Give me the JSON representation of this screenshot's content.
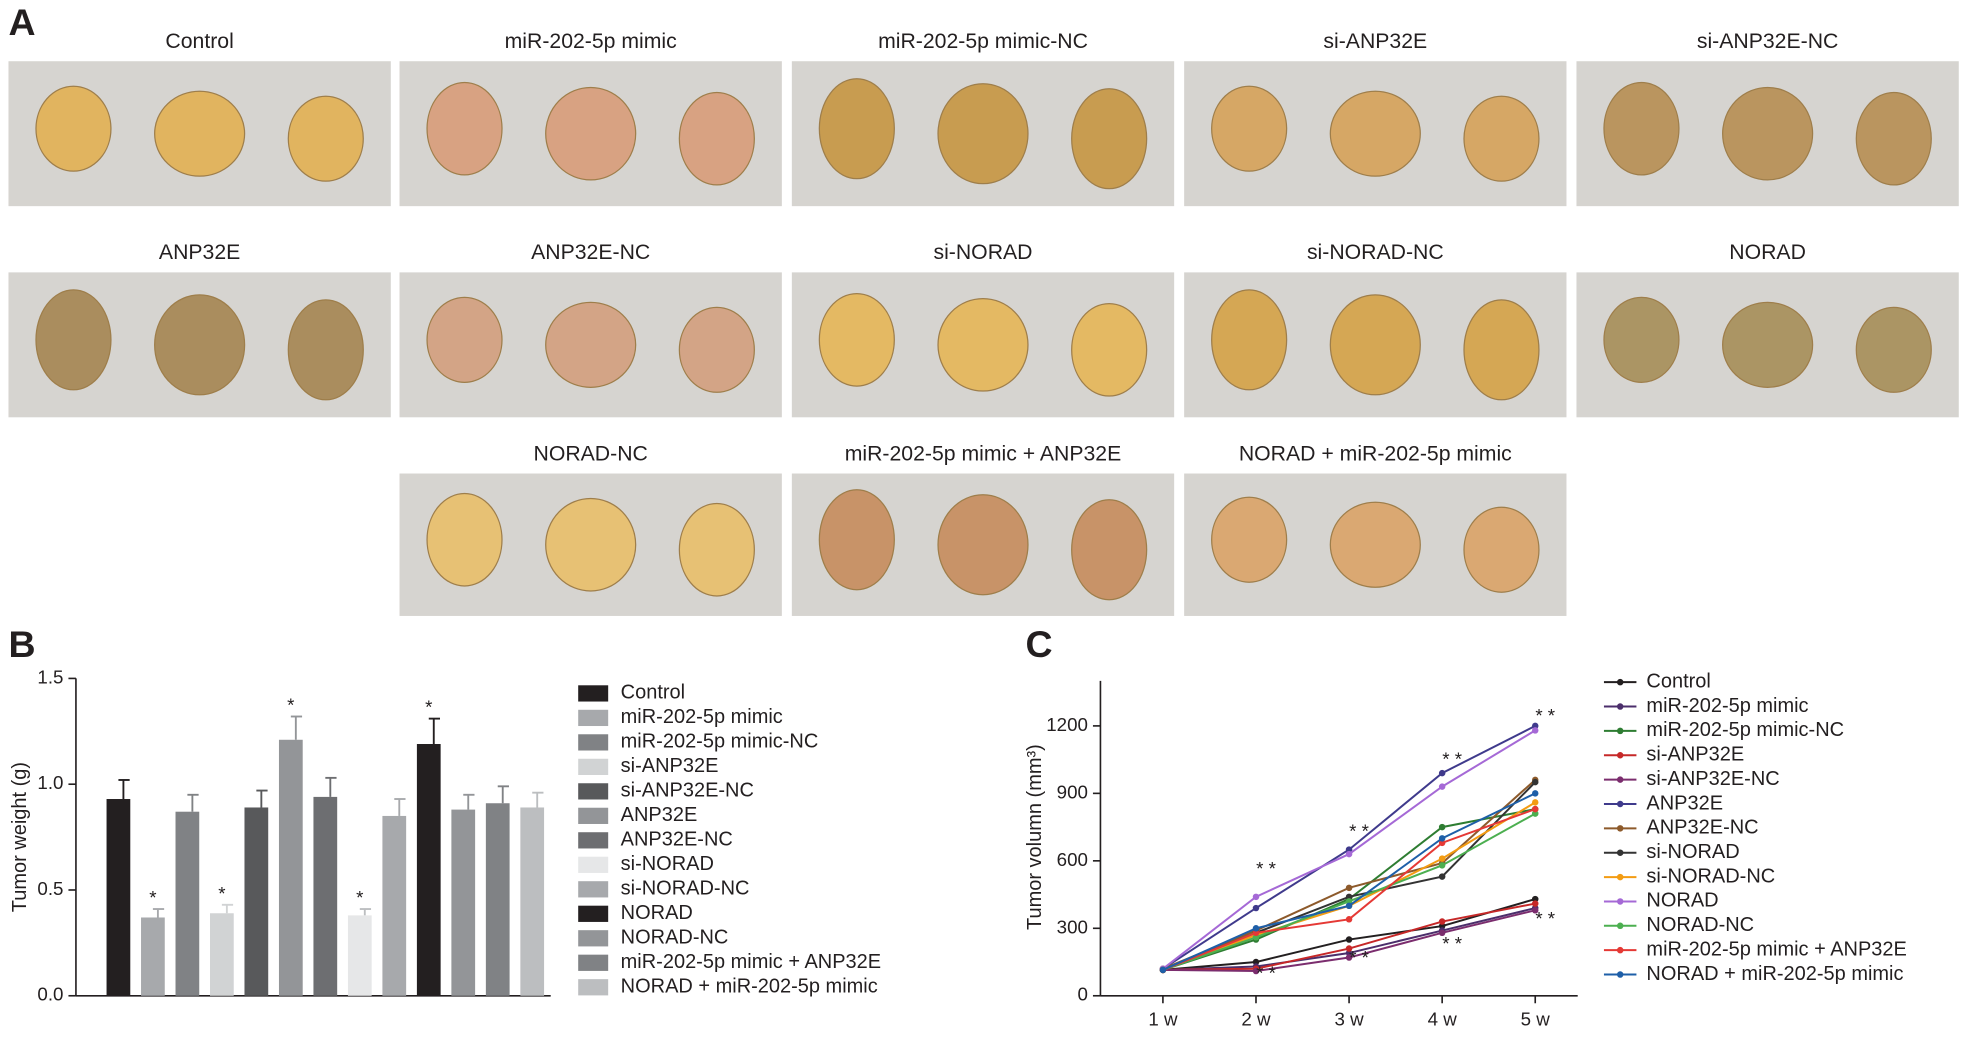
{
  "photo_panel": {
    "panel_label": "A",
    "captions": [
      "Control",
      "miR-202-5p mimic",
      "miR-202-5p mimic-NC",
      "si-ANP32E",
      "si-ANP32E-NC",
      "ANP32E",
      "ANP32E-NC",
      "si-NORAD",
      "si-NORAD-NC",
      "NORAD",
      "NORAD-NC",
      "miR-202-5p mimic + ANP32E",
      "NORAD + miR-202-5p mimic"
    ]
  },
  "chart_data": [
    {
      "type": "bar",
      "panel_label": "B",
      "ylabel": "Tumor weight (g)",
      "ylim": [
        0,
        1.5
      ],
      "yticks": [
        {
          "value": 0,
          "label": "0.0"
        },
        {
          "value": 0.5,
          "label": "0.5"
        },
        {
          "value": 1,
          "label": "1.0"
        },
        {
          "value": 1.5,
          "label": "1.5"
        }
      ],
      "series": [
        {
          "name": "Control",
          "color": "#231f20",
          "values": [
            0.93
          ],
          "errors": [
            0.09
          ]
        },
        {
          "name": "miR-202-5p mimic",
          "color": "#a7a9ac",
          "values": [
            0.37
          ],
          "errors": [
            0.04
          ],
          "annotation": "*"
        },
        {
          "name": "miR-202-5p mimic-NC",
          "color": "#808285",
          "values": [
            0.87
          ],
          "errors": [
            0.08
          ]
        },
        {
          "name": "si-ANP32E",
          "color": "#d1d3d4",
          "values": [
            0.39
          ],
          "errors": [
            0.04
          ],
          "annotation": "*"
        },
        {
          "name": "si-ANP32E-NC",
          "color": "#58595b",
          "values": [
            0.89
          ],
          "errors": [
            0.08
          ]
        },
        {
          "name": "ANP32E",
          "color": "#939598",
          "values": [
            1.21
          ],
          "errors": [
            0.11
          ],
          "annotation": "*"
        },
        {
          "name": "ANP32E-NC",
          "color": "#6d6e71",
          "values": [
            0.94
          ],
          "errors": [
            0.09
          ]
        },
        {
          "name": "si-NORAD",
          "color": "#e6e7e8",
          "values": [
            0.38
          ],
          "errors": [
            0.03
          ],
          "annotation": "*"
        },
        {
          "name": "si-NORAD-NC",
          "color": "#a7a9ac",
          "values": [
            0.85
          ],
          "errors": [
            0.08
          ]
        },
        {
          "name": "NORAD",
          "color": "#231f20",
          "values": [
            1.19
          ],
          "errors": [
            0.12
          ],
          "annotation": "*"
        },
        {
          "name": "NORAD-NC",
          "color": "#939598",
          "values": [
            0.88
          ],
          "errors": [
            0.07
          ]
        },
        {
          "name": "miR-202-5p mimic + ANP32E",
          "color": "#808285",
          "values": [
            0.91
          ],
          "errors": [
            0.08
          ]
        },
        {
          "name": "NORAD + miR-202-5p mimic",
          "color": "#bcbec0",
          "values": [
            0.89
          ],
          "errors": [
            0.07
          ]
        }
      ]
    },
    {
      "type": "line",
      "panel_label": "C",
      "ylabel": "Tumor volumn (mm³)",
      "categories": [
        "1 w",
        "2 w",
        "3 w",
        "4 w",
        "5 w"
      ],
      "ylim": [
        0,
        1400
      ],
      "yticks": [
        0,
        300,
        600,
        900,
        1200
      ],
      "series": [
        {
          "name": "Control",
          "color": "#231f20",
          "values": [
            115,
            150,
            250,
            310,
            430
          ]
        },
        {
          "name": "miR-202-5p mimic",
          "color": "#4b2e6b",
          "values": [
            115,
            130,
            190,
            290,
            390
          ]
        },
        {
          "name": "miR-202-5p mimic-NC",
          "color": "#2e7d32",
          "values": [
            115,
            250,
            430,
            750,
            830
          ]
        },
        {
          "name": "si-ANP32E",
          "color": "#c62828",
          "values": [
            115,
            120,
            210,
            330,
            410
          ]
        },
        {
          "name": "si-ANP32E-NC",
          "color": "#7b2d6e",
          "values": [
            115,
            110,
            170,
            280,
            380
          ]
        },
        {
          "name": "ANP32E",
          "color": "#3f3a8c",
          "values": [
            120,
            390,
            650,
            990,
            1200
          ]
        },
        {
          "name": "ANP32E-NC",
          "color": "#8d5a2b",
          "values": [
            120,
            290,
            480,
            590,
            960
          ]
        },
        {
          "name": "si-NORAD",
          "color": "#333333",
          "values": [
            115,
            280,
            440,
            530,
            950
          ]
        },
        {
          "name": "si-NORAD-NC",
          "color": "#f39c12",
          "values": [
            115,
            270,
            400,
            610,
            860
          ]
        },
        {
          "name": "NORAD",
          "color": "#a569d6",
          "values": [
            120,
            440,
            630,
            930,
            1180
          ]
        },
        {
          "name": "NORAD-NC",
          "color": "#4caf50",
          "values": [
            115,
            260,
            420,
            580,
            810
          ]
        },
        {
          "name": "miR-202-5p mimic + ANP32E",
          "color": "#e53935",
          "values": [
            115,
            280,
            340,
            680,
            830
          ]
        },
        {
          "name": "NORAD + miR-202-5p mimic",
          "color": "#1e5fa8",
          "values": [
            115,
            300,
            400,
            700,
            900
          ]
        }
      ],
      "annotations": [
        {
          "label": "* *",
          "category": "2 w",
          "value": 560
        },
        {
          "label": "* *",
          "category": "2 w",
          "value": 95
        },
        {
          "label": "* *",
          "category": "3 w",
          "value": 725
        },
        {
          "label": "* *",
          "category": "3 w",
          "value": 163
        },
        {
          "label": "* *",
          "category": "4 w",
          "value": 1045
        },
        {
          "label": "* *",
          "category": "4 w",
          "value": 225
        },
        {
          "label": "* *",
          "category": "5 w",
          "value": 1240
        },
        {
          "label": "* *",
          "category": "5 w",
          "value": 337
        }
      ]
    }
  ]
}
